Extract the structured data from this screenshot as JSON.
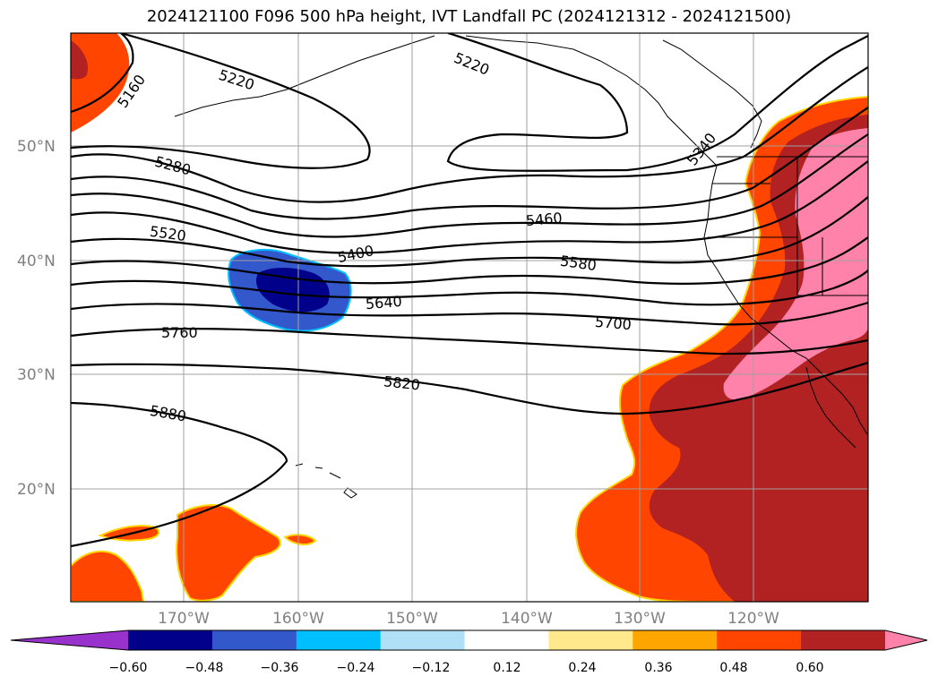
{
  "title": "2024121100 F096 500 hPa height, IVT Landfall PC (2024121312 - 2024121500)",
  "lat_labels": [
    "50°N",
    "40°N",
    "30°N",
    "20°N"
  ],
  "lon_labels": [
    "170°W",
    "160°W",
    "150°W",
    "140°W",
    "130°W",
    "120°W"
  ],
  "contour_labels": [
    "5160",
    "5220",
    "5220",
    "5280",
    "5340",
    "5400",
    "5460",
    "5520",
    "5580",
    "5640",
    "5700",
    "5760",
    "5820",
    "5880"
  ],
  "colorbar": {
    "ticks": [
      "−0.60",
      "−0.48",
      "−0.36",
      "−0.24",
      "−0.12",
      "0.12",
      "0.24",
      "0.36",
      "0.48",
      "0.60"
    ],
    "colors": [
      "#9932cc",
      "#00008b",
      "#3358cc",
      "#00bfff",
      "#b0e0f8",
      "#ffffff",
      "#ffe98c",
      "#ffa500",
      "#ff4500",
      "#b22222",
      "#ff82ab"
    ],
    "extend": "both"
  }
}
